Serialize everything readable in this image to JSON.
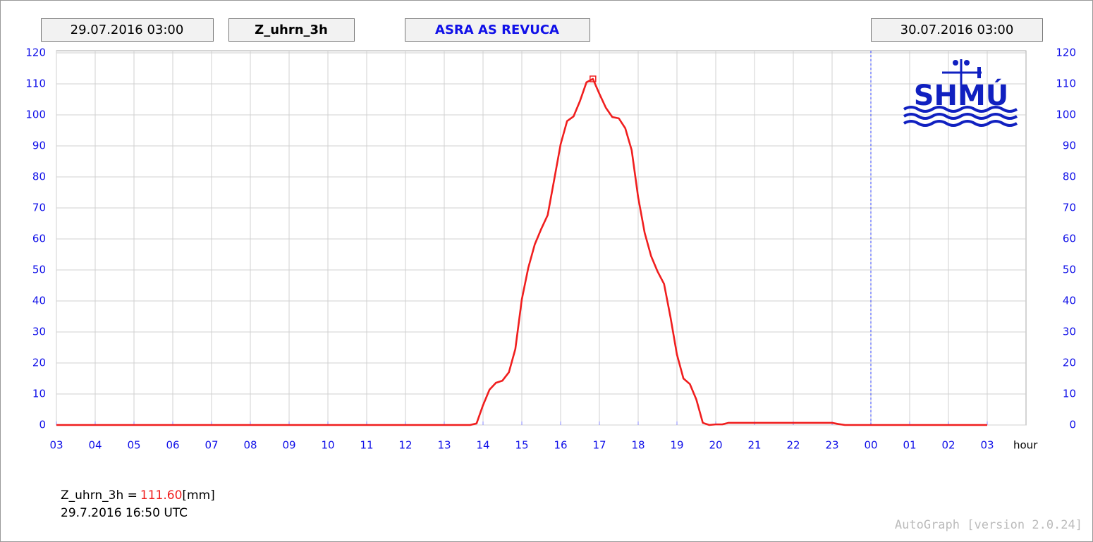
{
  "chart_data": {
    "type": "line",
    "header_start": "29.07.2016 03:00",
    "header_param": "Z_uhrn_3h",
    "header_station": "ASRA AS REVUCA",
    "header_end": "30.07.2016 03:00",
    "logo": "SHMÚ",
    "x_label": "hour",
    "xlim": [
      0,
      25
    ],
    "xticks": [
      {
        "value": 0,
        "label": "03"
      },
      {
        "value": 1,
        "label": "04"
      },
      {
        "value": 2,
        "label": "05"
      },
      {
        "value": 3,
        "label": "06"
      },
      {
        "value": 4,
        "label": "07"
      },
      {
        "value": 5,
        "label": "08"
      },
      {
        "value": 6,
        "label": "09"
      },
      {
        "value": 7,
        "label": "10"
      },
      {
        "value": 8,
        "label": "11"
      },
      {
        "value": 9,
        "label": "12"
      },
      {
        "value": 10,
        "label": "13"
      },
      {
        "value": 11,
        "label": "14"
      },
      {
        "value": 12,
        "label": "15"
      },
      {
        "value": 13,
        "label": "16"
      },
      {
        "value": 14,
        "label": "17"
      },
      {
        "value": 15,
        "label": "18"
      },
      {
        "value": 16,
        "label": "19"
      },
      {
        "value": 17,
        "label": "20"
      },
      {
        "value": 18,
        "label": "21"
      },
      {
        "value": 19,
        "label": "22"
      },
      {
        "value": 20,
        "label": "23"
      },
      {
        "value": 21,
        "label": "00"
      },
      {
        "value": 22,
        "label": "01"
      },
      {
        "value": 23,
        "label": "02"
      },
      {
        "value": 24,
        "label": "03"
      }
    ],
    "ylim": [
      0,
      120
    ],
    "yticks": [
      0,
      10,
      20,
      30,
      40,
      50,
      60,
      70,
      80,
      90,
      100,
      110,
      120
    ],
    "grid": true,
    "divider_x": 21,
    "series": [
      {
        "name": "Z_uhrn_3h",
        "color": "#f01e1e",
        "x": [
          0,
          10.667,
          10.833,
          11,
          11.167,
          11.333,
          11.5,
          11.667,
          11.833,
          12,
          12.167,
          12.333,
          12.5,
          12.667,
          12.833,
          13,
          13.167,
          13.333,
          13.5,
          13.667,
          13.833,
          14,
          14.167,
          14.333,
          14.5,
          14.667,
          14.833,
          15,
          15.167,
          15.333,
          15.5,
          15.667,
          15.833,
          16,
          16.167,
          16.333,
          16.5,
          16.667,
          16.833,
          17,
          17.167,
          17.333,
          20,
          20.167,
          20.333,
          24
        ],
        "values": [
          0,
          0,
          0.5,
          6.4,
          11.4,
          13.6,
          14.3,
          17,
          24.5,
          40.5,
          50.7,
          58.2,
          63.2,
          67.7,
          79,
          90.5,
          98,
          99.5,
          104.5,
          110.5,
          111.6,
          106.8,
          102.3,
          99.3,
          98.9,
          95.7,
          88.6,
          73.4,
          62,
          54.5,
          49.5,
          45.5,
          34.8,
          22.7,
          15,
          13.2,
          8.2,
          0.7,
          0,
          0.2,
          0.2,
          0.7,
          0.7,
          0.3,
          0,
          0
        ]
      }
    ],
    "marker": {
      "x": 13.833,
      "y": 111.6,
      "value_label": "111.60"
    },
    "readout_name": "Z_uhrn_3h =",
    "readout_unit": "[mm]",
    "readout_time": "29.7.2016 16:50 UTC",
    "footer": "AutoGraph [version 2.0.24]"
  }
}
